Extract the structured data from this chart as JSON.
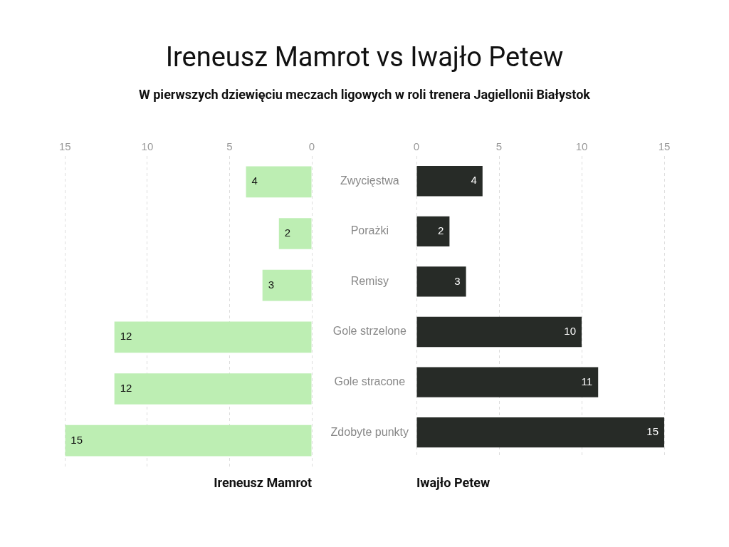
{
  "chart_data": [
    {
      "type": "bar",
      "orientation": "horizontal",
      "title": "Ireneusz Mamrot vs Iwajło Petew",
      "subtitle": "W pierwszych dziewięciu meczach ligowych w roli trenera Jagiellonii Białystok",
      "categories": [
        null,
        null,
        null,
        null,
        null,
        null
      ],
      "values": [
        4,
        2,
        3,
        12,
        12,
        15
      ],
      "color": "#bdeeb3",
      "xlim": [
        15,
        0
      ],
      "xticks": [
        15,
        10,
        5,
        0
      ],
      "xlabel": "Ireneusz Mamrot",
      "grid": "x",
      "data_labels": true
    },
    {
      "type": "bar",
      "orientation": "horizontal",
      "categories": [
        "Zwycięstwa",
        "Porażki",
        "Remisy",
        "Gole strzelone",
        "Gole stracone",
        "Zdobyte punkty"
      ],
      "values": [
        4,
        2,
        3,
        10,
        11,
        15
      ],
      "color": "#272b27",
      "xlim": [
        0,
        15
      ],
      "xticks": [
        0,
        5,
        10,
        15
      ],
      "xlabel": "Iwajło Petew",
      "grid": "x",
      "data_labels": true
    }
  ]
}
